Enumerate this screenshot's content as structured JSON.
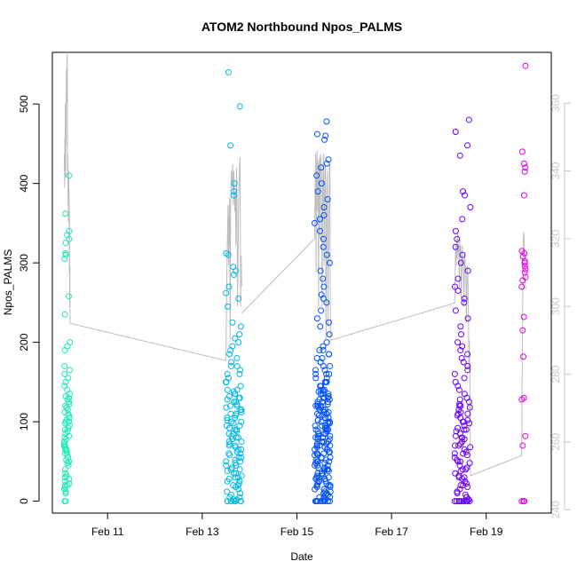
{
  "chart_data": {
    "type": "scatter",
    "title": "ATOM2 Northbound Npos_PALMS",
    "xlabel": "Date",
    "ylabel": "Npos_PALMS",
    "xlim": [
      "2018-02-09T20:00",
      "2018-02-20T09:00"
    ],
    "ylim": [
      -15,
      565
    ],
    "ylim_right": [
      239,
      375
    ],
    "x_ticks": [
      {
        "date": "2018-02-11",
        "label": "Feb 11"
      },
      {
        "date": "2018-02-13",
        "label": "Feb 13"
      },
      {
        "date": "2018-02-15",
        "label": "Feb 15"
      },
      {
        "date": "2018-02-17",
        "label": "Feb 17"
      },
      {
        "date": "2018-02-19",
        "label": "Feb 19"
      }
    ],
    "y_ticks": [
      0,
      100,
      200,
      300,
      400,
      500
    ],
    "y_ticks_right": [
      240,
      260,
      280,
      300,
      320,
      340,
      360
    ],
    "grid": false,
    "legend": "none",
    "colors": {
      "line": "#bdbdbd",
      "left_axis": "#000000",
      "right_axis": "#c8c8c8"
    },
    "series": [
      {
        "color": "#1de9b6",
        "x_range": [
          "2018-02-10T02:00",
          "2018-02-10T05:00"
        ],
        "points": [
          0,
          0,
          10,
          12,
          15,
          18,
          20,
          20,
          22,
          25,
          28,
          30,
          32,
          35,
          40,
          45,
          48,
          50,
          52,
          55,
          58,
          60,
          62,
          65,
          65,
          68,
          70,
          70,
          72,
          75,
          78,
          80,
          82,
          85,
          88,
          90,
          92,
          95,
          98,
          100,
          100,
          102,
          105,
          108,
          110,
          112,
          115,
          118,
          120,
          122,
          125,
          128,
          130,
          132,
          135,
          140,
          145,
          150,
          155,
          160,
          165,
          170,
          190,
          195,
          200,
          235,
          258,
          305,
          310,
          312,
          325,
          330,
          335,
          340,
          362,
          410
        ]
      },
      {
        "color": "#00b8e6",
        "x_range": [
          "2018-02-13T12:00",
          "2018-02-13T20:00"
        ],
        "points": [
          0,
          0,
          0,
          0,
          0,
          0,
          0,
          0,
          2,
          2,
          5,
          5,
          8,
          10,
          12,
          15,
          18,
          20,
          20,
          22,
          25,
          25,
          28,
          30,
          30,
          32,
          35,
          35,
          38,
          40,
          40,
          42,
          45,
          45,
          48,
          50,
          50,
          52,
          55,
          55,
          58,
          60,
          60,
          62,
          65,
          65,
          68,
          70,
          70,
          72,
          75,
          75,
          78,
          80,
          80,
          82,
          85,
          85,
          88,
          90,
          90,
          92,
          95,
          95,
          98,
          100,
          100,
          102,
          105,
          105,
          108,
          110,
          110,
          112,
          115,
          115,
          118,
          120,
          120,
          122,
          125,
          125,
          128,
          130,
          130,
          132,
          135,
          135,
          138,
          140,
          140,
          145,
          150,
          150,
          155,
          160,
          160,
          165,
          170,
          170,
          175,
          180,
          185,
          190,
          195,
          200,
          205,
          210,
          220,
          225,
          245,
          255,
          262,
          270,
          285,
          290,
          295,
          310,
          312,
          385,
          390,
          400,
          448,
          497,
          540
        ]
      },
      {
        "color": "#0050ff",
        "x_range": [
          "2018-02-15T09:00",
          "2018-02-15T17:00"
        ],
        "points": [
          0,
          0,
          0,
          0,
          0,
          0,
          0,
          0,
          0,
          0,
          2,
          2,
          5,
          5,
          5,
          8,
          8,
          10,
          10,
          12,
          12,
          15,
          15,
          18,
          18,
          20,
          20,
          20,
          22,
          22,
          25,
          25,
          25,
          28,
          28,
          30,
          30,
          30,
          32,
          32,
          35,
          35,
          35,
          38,
          38,
          40,
          40,
          40,
          42,
          42,
          45,
          45,
          45,
          48,
          48,
          50,
          50,
          50,
          52,
          52,
          55,
          55,
          55,
          58,
          58,
          60,
          60,
          60,
          62,
          62,
          65,
          65,
          65,
          68,
          68,
          70,
          70,
          70,
          72,
          72,
          75,
          75,
          75,
          78,
          78,
          80,
          80,
          80,
          82,
          82,
          85,
          85,
          85,
          88,
          88,
          90,
          90,
          90,
          92,
          92,
          95,
          95,
          95,
          98,
          98,
          100,
          100,
          100,
          102,
          102,
          105,
          105,
          105,
          108,
          108,
          110,
          110,
          110,
          112,
          112,
          115,
          115,
          115,
          118,
          118,
          120,
          120,
          120,
          122,
          122,
          125,
          125,
          125,
          128,
          128,
          130,
          130,
          130,
          132,
          132,
          135,
          135,
          135,
          138,
          138,
          140,
          140,
          140,
          145,
          145,
          150,
          150,
          150,
          155,
          155,
          160,
          160,
          160,
          165,
          165,
          170,
          170,
          175,
          175,
          180,
          180,
          185,
          185,
          190,
          190,
          195,
          200,
          210,
          220,
          225,
          230,
          240,
          250,
          255,
          260,
          270,
          280,
          290,
          300,
          310,
          320,
          330,
          340,
          350,
          355,
          360,
          370,
          380,
          390,
          400,
          410,
          420,
          425,
          430,
          455,
          460,
          462,
          478
        ]
      },
      {
        "color": "#6a00ff",
        "x_range": [
          "2018-02-18T08:00",
          "2018-02-18T16:00"
        ],
        "points": [
          0,
          0,
          0,
          0,
          0,
          0,
          0,
          0,
          0,
          0,
          0,
          0,
          0,
          0,
          2,
          2,
          5,
          5,
          8,
          10,
          12,
          15,
          18,
          20,
          20,
          22,
          25,
          28,
          30,
          30,
          32,
          35,
          38,
          40,
          40,
          42,
          45,
          48,
          50,
          50,
          52,
          55,
          58,
          60,
          60,
          62,
          65,
          68,
          70,
          70,
          72,
          75,
          78,
          80,
          80,
          82,
          85,
          88,
          90,
          90,
          92,
          95,
          98,
          100,
          100,
          102,
          105,
          108,
          110,
          110,
          112,
          115,
          118,
          120,
          120,
          122,
          125,
          128,
          130,
          135,
          140,
          145,
          150,
          155,
          160,
          165,
          170,
          175,
          180,
          185,
          190,
          195,
          200,
          210,
          220,
          230,
          240,
          250,
          255,
          265,
          270,
          280,
          290,
          300,
          310,
          320,
          330,
          340,
          355,
          370,
          385,
          390,
          435,
          448,
          465,
          480
        ]
      },
      {
        "color": "#e600e6",
        "x_range": [
          "2018-02-19T18:00",
          "2018-02-19T20:00"
        ],
        "points": [
          0,
          0,
          0,
          0,
          70,
          82,
          128,
          130,
          182,
          215,
          232,
          270,
          278,
          282,
          288,
          292,
          296,
          300,
          302,
          308,
          312,
          315,
          385,
          415,
          420,
          425,
          440,
          548
        ]
      }
    ],
    "line_segments": [
      {
        "axis": "right",
        "x_range": [
          "2018-02-10T02:00",
          "2018-02-10T05:00"
        ],
        "y": [
          340,
          345,
          335,
          350,
          342,
          360,
          345,
          338,
          355,
          348,
          370,
          365,
          360,
          372,
          375,
          368,
          340,
          345,
          330,
          335,
          325,
          340,
          330,
          335,
          310,
          328,
          300,
          312,
          295
        ]
      },
      {
        "axis": "right",
        "x": [
          "2018-02-10T05:00",
          "2018-02-13T12:00"
        ],
        "y": [
          295,
          284
        ]
      },
      {
        "axis": "right",
        "x_range": [
          "2018-02-13T12:00",
          "2018-02-13T20:00"
        ],
        "y": [
          284,
          298,
          312,
          320,
          330,
          312,
          326,
          332,
          290,
          328,
          340,
          335,
          338,
          342,
          330,
          340,
          336,
          328,
          334,
          318,
          341,
          335,
          300,
          312,
          328,
          336,
          341,
          344,
          300,
          315,
          306
        ]
      },
      {
        "axis": "right",
        "x": [
          "2018-02-13T20:00",
          "2018-02-15T09:00"
        ],
        "y": [
          298,
          320
        ]
      },
      {
        "axis": "right",
        "x_range": [
          "2018-02-15T09:00",
          "2018-02-15T17:00"
        ],
        "y": [
          320,
          335,
          345,
          310,
          340,
          346,
          328,
          343,
          300,
          338,
          344,
          320,
          345,
          343,
          338,
          300,
          328,
          340,
          345,
          312,
          330,
          342,
          341,
          290,
          315,
          335,
          340,
          294,
          312,
          325,
          341,
          342,
          290
        ]
      },
      {
        "axis": "right",
        "x": [
          "2018-02-15T17:00",
          "2018-02-18T08:00"
        ],
        "y": [
          290,
          301
        ]
      },
      {
        "axis": "right",
        "x_range": [
          "2018-02-18T08:00",
          "2018-02-18T16:00"
        ],
        "y": [
          301,
          310,
          318,
          312,
          320,
          314,
          322,
          316,
          318,
          305,
          320,
          315,
          318,
          302,
          310,
          318,
          312,
          314,
          300,
          308,
          316,
          310,
          312,
          295,
          305,
          312,
          308,
          300,
          282,
          290,
          278,
          250
        ]
      },
      {
        "axis": "right",
        "x": [
          "2018-02-18T16:00",
          "2018-02-19T18:00"
        ],
        "y": [
          250,
          256
        ]
      },
      {
        "axis": "right",
        "x_range": [
          "2018-02-19T18:00",
          "2018-02-19T20:00"
        ],
        "y": [
          256,
          280,
          300,
          318,
          322,
          320,
          312,
          308,
          305
        ]
      }
    ]
  }
}
